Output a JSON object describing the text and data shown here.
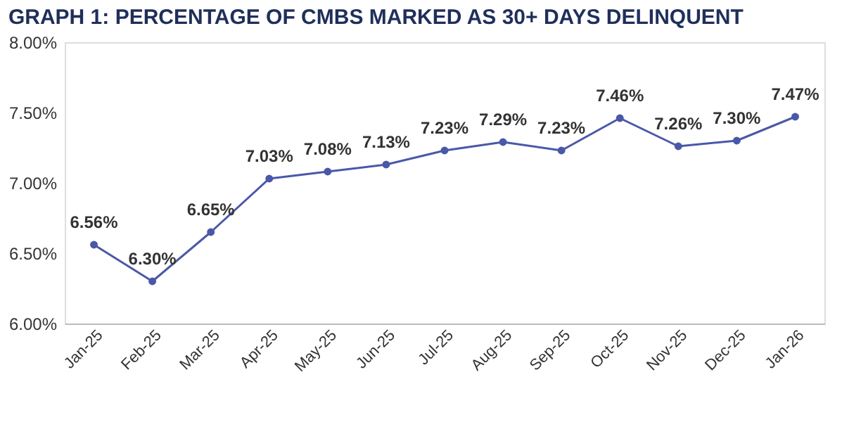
{
  "chart_data": {
    "type": "line",
    "title": "GRAPH 1: PERCENTAGE OF CMBS MARKED AS 30+ DAYS DELINQUENT",
    "categories": [
      "Jan-25",
      "Feb-25",
      "Mar-25",
      "Apr-25",
      "May-25",
      "Jun-25",
      "Jul-25",
      "Aug-25",
      "Sep-25",
      "Oct-25",
      "Nov-25",
      "Dec-25",
      "Jan-26"
    ],
    "series": [
      {
        "color": "#4a58a8",
        "values": [
          6.56,
          6.3,
          6.65,
          7.03,
          7.08,
          7.13,
          7.23,
          7.29,
          7.23,
          7.46,
          7.26,
          7.3,
          7.47
        ],
        "value_labels": [
          "6.56%",
          "6.30%",
          "6.65%",
          "7.03%",
          "7.08%",
          "7.13%",
          "7.23%",
          "7.29%",
          "7.23%",
          "7.46%",
          "7.26%",
          "7.30%",
          "7.47%"
        ]
      }
    ],
    "ylim": [
      6.0,
      8.0
    ],
    "yticks": [
      {
        "value": 6.0,
        "label": "6.00%"
      },
      {
        "value": 6.5,
        "label": "6.50%"
      },
      {
        "value": 7.0,
        "label": "7.00%"
      },
      {
        "value": 7.5,
        "label": "7.50%"
      },
      {
        "value": 8.0,
        "label": "8.00%"
      }
    ],
    "grid": false,
    "marker": "circle",
    "line_style": "solid"
  }
}
